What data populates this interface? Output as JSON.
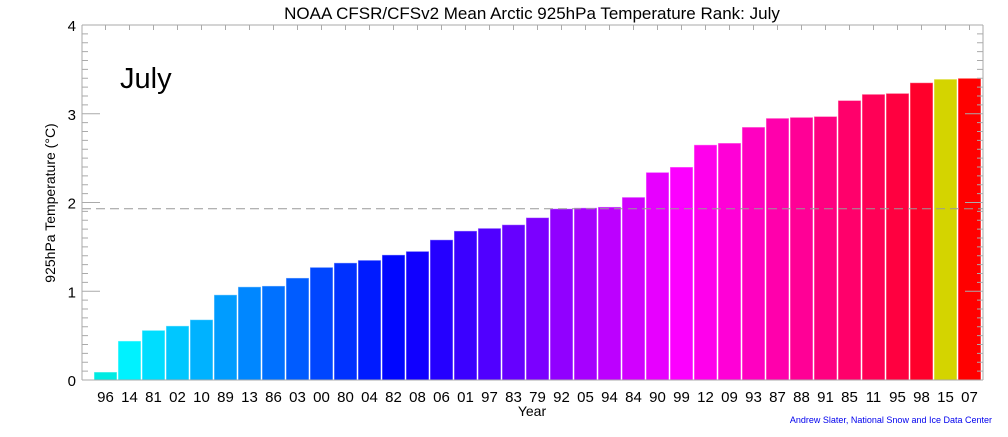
{
  "chart_data": {
    "type": "bar",
    "title": "NOAA CFSR/CFSv2 Mean Arctic 925hPa Temperature Rank: July",
    "annotation": "July",
    "xlabel": "Year",
    "ylabel": "925hPa Temperature (°C)",
    "ylim": [
      0,
      4
    ],
    "yticks": [
      0,
      1,
      2,
      3,
      4
    ],
    "grid": false,
    "mean_line": 1.93,
    "categories": [
      "96",
      "14",
      "81",
      "02",
      "10",
      "89",
      "13",
      "86",
      "03",
      "00",
      "80",
      "04",
      "82",
      "08",
      "06",
      "01",
      "97",
      "83",
      "79",
      "92",
      "05",
      "94",
      "84",
      "90",
      "99",
      "12",
      "09",
      "93",
      "87",
      "88",
      "91",
      "85",
      "11",
      "95",
      "98",
      "15",
      "07"
    ],
    "values": [
      0.09,
      0.44,
      0.56,
      0.61,
      0.68,
      0.96,
      1.05,
      1.06,
      1.15,
      1.27,
      1.32,
      1.35,
      1.41,
      1.45,
      1.58,
      1.68,
      1.71,
      1.75,
      1.83,
      1.93,
      1.94,
      1.95,
      2.06,
      2.34,
      2.4,
      2.65,
      2.67,
      2.85,
      2.95,
      2.96,
      2.97,
      3.15,
      3.22,
      3.23,
      3.35,
      3.39,
      3.4
    ],
    "color_scale": [
      "#00eeee",
      "#0000ff",
      "#ff00ff",
      "#ff0000"
    ],
    "highlight": {
      "category": "15",
      "color": "#d4d400"
    }
  },
  "credit": "Andrew Slater, National Snow and Ice Data Center"
}
